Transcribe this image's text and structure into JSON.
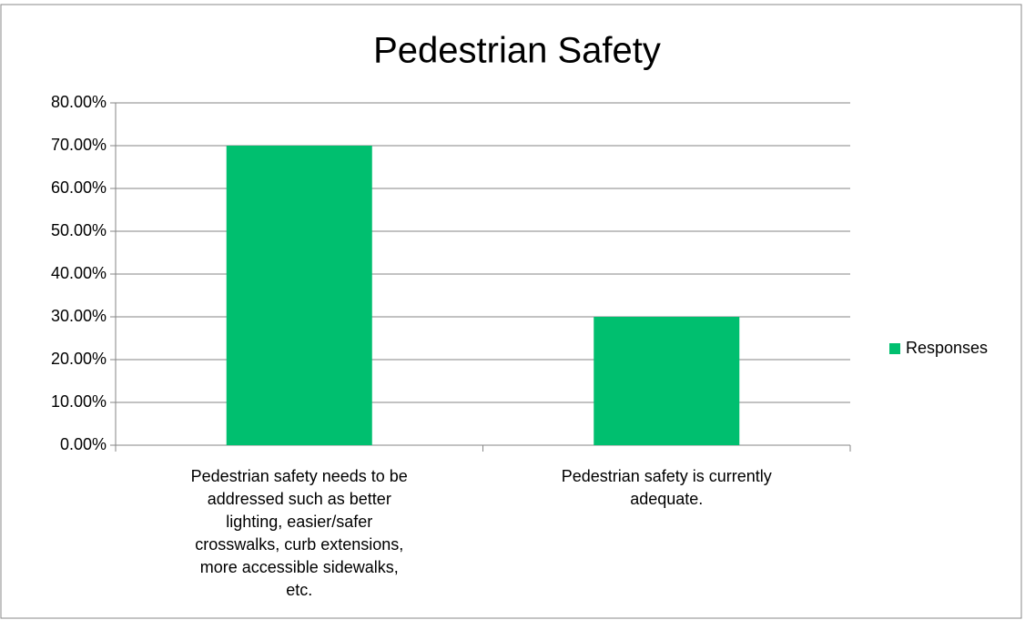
{
  "chart_data": {
    "type": "bar",
    "title": "Pedestrian Safety",
    "categories": [
      "Pedestrian safety needs to be addressed such as better lighting, easier/safer crosswalks, curb extensions, more accessible sidewalks, etc.",
      "Pedestrian safety is currently adequate."
    ],
    "series": [
      {
        "name": "Responses",
        "color": "#00bf6f",
        "values": [
          70,
          30
        ]
      }
    ],
    "ylim": [
      0,
      80
    ],
    "yticks": [
      {
        "value": 0,
        "label": "0.00%"
      },
      {
        "value": 10,
        "label": "10.00%"
      },
      {
        "value": 20,
        "label": "20.00%"
      },
      {
        "value": 30,
        "label": "30.00%"
      },
      {
        "value": 40,
        "label": "40.00%"
      },
      {
        "value": 50,
        "label": "50.00%"
      },
      {
        "value": 60,
        "label": "60.00%"
      },
      {
        "value": 70,
        "label": "70.00%"
      },
      {
        "value": 80,
        "label": "80.00%"
      }
    ],
    "grid": true,
    "legend": "right"
  }
}
